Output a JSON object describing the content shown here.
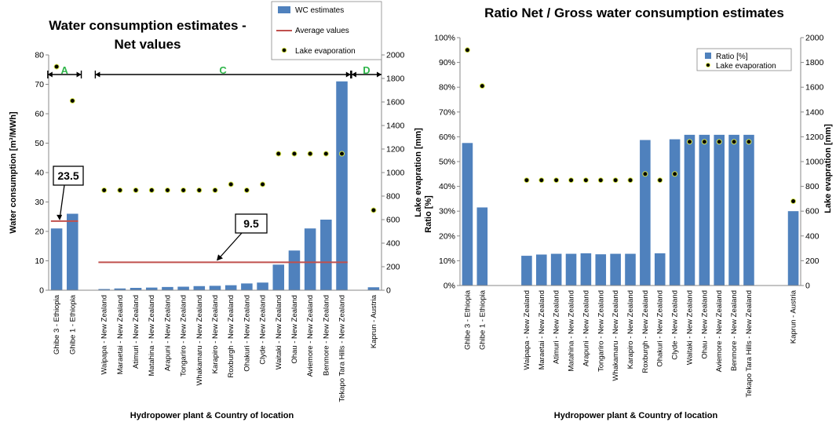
{
  "colors": {
    "bar": "#4f81bd",
    "average": "#c0504d",
    "dot_fill": "#000000",
    "dot_ring": "#d9e84a",
    "group": "#2fb54a"
  },
  "chart_data": [
    {
      "type": "bar",
      "title_lines": [
        "Water consumption estimates -",
        "Net values"
      ],
      "xlabel": "Hydropower plant & Country of location",
      "ylabel": "Water consumption [m³/MWh]",
      "y2label": "Lake evapration [mm]",
      "ylim": [
        0,
        80
      ],
      "y_ticks": [
        "0",
        "10",
        "20",
        "30",
        "40",
        "50",
        "60",
        "70",
        "80"
      ],
      "y2lim": [
        0,
        2000
      ],
      "y2_ticks": [
        "0",
        "200",
        "400",
        "600",
        "800",
        "1000",
        "1200",
        "1400",
        "1600",
        "1800",
        "2000"
      ],
      "grid": false,
      "legend_position": "top-right",
      "categories": [
        "Ghibe 3 - Ethiopia",
        "Ghibe 1 - Ethiopia",
        "",
        "Waipapa - New Zealand",
        "Maraetai - New Zealand",
        "Atimuri - New Zealand",
        "Matahina - New Zealand",
        "Arapuni - New Zealand",
        "Tongariro - New Zealand",
        "Whakamaru - New Zealand",
        "Karapiro - New Zealand",
        "Roxburgh - New Zealand",
        "Ohakuri - New Zealand",
        "Clyde - New Zealand",
        "Waitaki - New Zealand",
        "Ohau - New Zealand",
        "Aviemore - New Zealand",
        "Benmore - New Zealand",
        "Tekapo Tara Hills - New Zealand",
        "",
        "Kaprun - Austria"
      ],
      "series": [
        {
          "name": "WC estimates",
          "type": "bar",
          "axis": "left",
          "values": [
            21,
            26,
            null,
            0.4,
            0.6,
            0.8,
            0.9,
            1.1,
            1.2,
            1.4,
            1.5,
            1.7,
            2.3,
            2.6,
            8.7,
            13.5,
            21,
            24,
            71,
            null,
            1.0
          ]
        },
        {
          "name": "Average values",
          "type": "line",
          "axis": "left",
          "segments": [
            {
              "from": 0,
              "to": 1,
              "value": 23.5
            },
            {
              "from": 3,
              "to": 18,
              "value": 9.5
            }
          ]
        },
        {
          "name": "Lake evaporation",
          "type": "scatter",
          "axis": "right",
          "values": [
            1900,
            1610,
            null,
            850,
            850,
            850,
            850,
            850,
            850,
            850,
            850,
            900,
            850,
            900,
            1160,
            1160,
            1160,
            1160,
            1160,
            null,
            680
          ]
        }
      ],
      "groups": [
        {
          "label": "A",
          "from": 0,
          "to": 1
        },
        {
          "label": "C",
          "from": 3,
          "to": 18
        },
        {
          "label": "D",
          "from": 20,
          "to": 20
        }
      ],
      "annotations": [
        {
          "text": "23.5",
          "value": 23.5
        },
        {
          "text": "9.5",
          "value": 9.5
        }
      ]
    },
    {
      "type": "bar",
      "title_lines": [
        "Ratio Net / Gross water consumption estimates"
      ],
      "xlabel": "Hydropower plant & Country of location",
      "ylabel": "Ratio [%]",
      "y2label": "Lake evapration [mm]",
      "ylim": [
        0,
        100
      ],
      "y_ticks": [
        "0%",
        "10%",
        "20%",
        "30%",
        "40%",
        "50%",
        "60%",
        "70%",
        "80%",
        "90%",
        "100%"
      ],
      "y2lim": [
        0,
        2000
      ],
      "y2_ticks": [
        "0",
        "200",
        "400",
        "600",
        "800",
        "1000",
        "1200",
        "1400",
        "1600",
        "1800",
        "2000"
      ],
      "grid": false,
      "legend_position": "top-right",
      "categories": [
        "Ghibe 3 - Ethiopia",
        "Ghibe 1 - Ethiopia",
        "",
        "",
        "Waipapa - New Zealand",
        "Maraetai - New Zealand",
        "Atimuri - New Zealand",
        "Matahina - New Zealand",
        "Arapuni - New Zealand",
        "Tongariro - New Zealand",
        "Whakamaru - New Zealand",
        "Karapiro - New Zealand",
        "Roxburgh - New Zealand",
        "Ohakuri - New Zealand",
        "Clyde - New Zealand",
        "Waitaki - New Zealand",
        "Ohau - New Zealand",
        "Aviemore - New Zealand",
        "Benmore - New Zealand",
        "Tekapo Tara Hills - New Zealand",
        "",
        "",
        "Kaprun - Austria"
      ],
      "series": [
        {
          "name": "Ratio [%]",
          "type": "bar",
          "axis": "left",
          "values": [
            57.5,
            31.5,
            null,
            null,
            12,
            12.5,
            12.8,
            12.8,
            13,
            12.6,
            12.8,
            12.8,
            58.7,
            13,
            59,
            60.8,
            60.8,
            60.8,
            60.8,
            60.8,
            null,
            null,
            30
          ]
        },
        {
          "name": "Lake evaporation",
          "type": "scatter",
          "axis": "right",
          "values": [
            1900,
            1610,
            null,
            null,
            850,
            850,
            850,
            850,
            850,
            850,
            850,
            850,
            900,
            850,
            900,
            1160,
            1160,
            1160,
            1160,
            1160,
            null,
            null,
            680
          ]
        }
      ]
    }
  ]
}
